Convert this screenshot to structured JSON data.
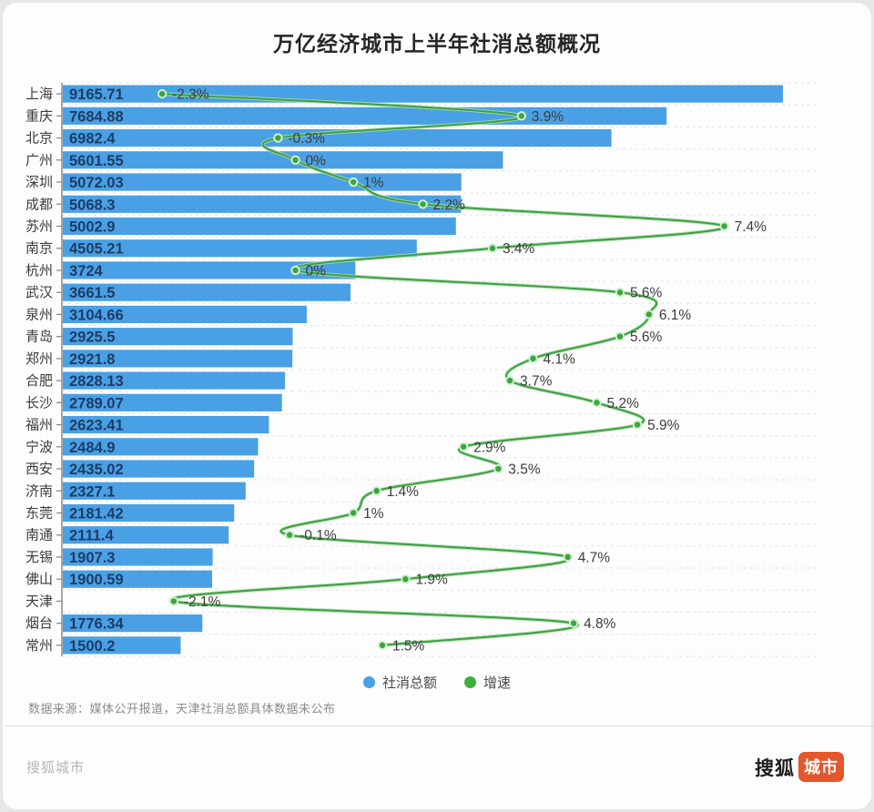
{
  "title": "万亿经济城市上半年社消总额概况",
  "legend": {
    "bars_label": "社消总额",
    "line_label": "增速"
  },
  "source_note": "数据来源：媒体公开报道，天津社消总额具体数据未公布",
  "footer": {
    "left_text": "搜狐城市",
    "brand_text": "搜狐",
    "brand_badge": "城市"
  },
  "colors": {
    "bar": "#4aa0e4",
    "bar_value_label": "#1d3c66",
    "line_core": "#3f9d4a",
    "line_halo": "#a7dfa0",
    "dot_fill": "#3da344",
    "dot_ring": "#cff0cb",
    "growth_label": "#3d3d3d",
    "city_label": "#3c3c3c",
    "axis": "#8a8a8a",
    "gridline": "#e4e4e4",
    "legend_bar_swatch": "#4aa0e4",
    "legend_line_swatch": "#3fae3f"
  },
  "chart_data": {
    "type": "bar",
    "orientation": "horizontal",
    "title": "万亿经济城市上半年社消总额概况",
    "grid": "dashed-horizontal",
    "legend_position": "bottom",
    "categories": [
      "上海",
      "重庆",
      "北京",
      "广州",
      "深圳",
      "成都",
      "苏州",
      "南京",
      "杭州",
      "武汉",
      "泉州",
      "青岛",
      "郑州",
      "合肥",
      "长沙",
      "福州",
      "宁波",
      "西安",
      "济南",
      "东莞",
      "南通",
      "无锡",
      "佛山",
      "天津",
      "烟台",
      "常州"
    ],
    "series": [
      {
        "name": "社消总额",
        "type": "bar",
        "values": [
          9165.71,
          7684.88,
          6982.4,
          5601.55,
          5072.03,
          5068.3,
          5002.9,
          4505.21,
          3724,
          3661.5,
          3104.66,
          2925.5,
          2921.8,
          2828.13,
          2789.07,
          2623.41,
          2484.9,
          2435.02,
          2327.1,
          2181.42,
          2111.4,
          1907.3,
          1900.59,
          null,
          1776.34,
          1500.2
        ]
      },
      {
        "name": "增速",
        "type": "line",
        "unit": "%",
        "values": [
          -2.3,
          3.9,
          -0.3,
          0,
          1,
          2.2,
          7.4,
          3.4,
          0,
          5.6,
          6.1,
          5.6,
          4.1,
          3.7,
          5.2,
          5.9,
          2.9,
          3.5,
          1.4,
          1,
          -0.1,
          4.7,
          1.9,
          -2.1,
          4.8,
          1.5
        ]
      }
    ],
    "bar_axis_range": [
      0,
      9165.71
    ],
    "note": "天津 bar value not published"
  }
}
